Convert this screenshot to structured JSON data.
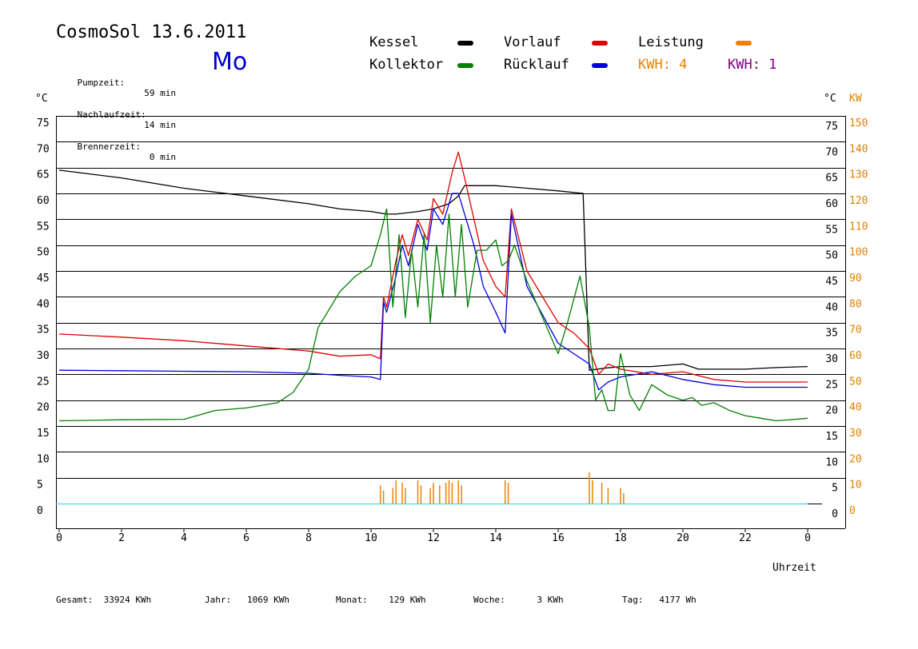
{
  "header": {
    "title": "CosmoSol 13.6.2011",
    "day": "Mo",
    "stats": [
      {
        "label": "Pumpzeit:",
        "value": "59 min"
      },
      {
        "label": "Nachlaufzeit:",
        "value": "14 min"
      },
      {
        "label": "Brennerzeit:",
        "value": "0 min"
      }
    ]
  },
  "legend": {
    "items": [
      {
        "label": "Kessel",
        "color": "#000000"
      },
      {
        "label": "Vorlauf",
        "color": "#e00000"
      },
      {
        "label": "Leistung",
        "color": "#f08000"
      },
      {
        "label": "Kollektor",
        "color": "#008000"
      },
      {
        "label": "Rücklauf",
        "color": "#0000e0"
      }
    ],
    "kwh_orange": "KWH: 4",
    "kwh_purple": "KWH: 1",
    "kwh_orange_color": "#f08000",
    "kwh_purple_color": "#800080"
  },
  "footer": {
    "gesamt": "Gesamt:  33924 KWh",
    "jahr": "Jahr:   1069 KWh",
    "monat": "Monat:    129 KWh",
    "woche": "Woche:      3 KWh",
    "tag": "Tag:   4177 Wh"
  },
  "chart_data": {
    "type": "line",
    "xlabel": "Uhrzeit",
    "ylabel_left": "°C",
    "ylabel_right_temp": "°C",
    "ylabel_right_power": "KW",
    "x_ticks": [
      "0",
      "2",
      "4",
      "6",
      "8",
      "10",
      "12",
      "14",
      "16",
      "18",
      "20",
      "22",
      "0"
    ],
    "y_ticks": [
      "75",
      "70",
      "65",
      "60",
      "55",
      "50",
      "45",
      "40",
      "35",
      "30",
      "25",
      "20",
      "15",
      "10",
      "5",
      "0"
    ],
    "y2_ticks": [
      "150",
      "140",
      "130",
      "120",
      "110",
      "100",
      "90",
      "80",
      "70",
      "60",
      "50",
      "40",
      "30",
      "20",
      "10",
      "0"
    ],
    "xlim": [
      0,
      24
    ],
    "ylim": [
      0,
      75
    ],
    "grid": true,
    "series": [
      {
        "name": "Kessel",
        "color": "#000000",
        "x": [
          0,
          2,
          4,
          6,
          8,
          9,
          10,
          10.5,
          10.8,
          11.5,
          12,
          12.5,
          12.8,
          13,
          14,
          15,
          16,
          16.8,
          17,
          17.5,
          18,
          19,
          20,
          20.5,
          21,
          22,
          23,
          24
        ],
        "y": [
          64.5,
          63,
          61,
          59.5,
          58,
          57,
          56.5,
          56,
          56,
          56.5,
          57,
          58,
          59.5,
          61.5,
          61.5,
          61,
          60.5,
          60,
          25.8,
          26.2,
          26.5,
          26.5,
          27,
          26,
          26,
          26,
          26.3,
          26.5
        ]
      },
      {
        "name": "Vorlauf",
        "color": "#e00000",
        "x": [
          0,
          2,
          4,
          6,
          8,
          9,
          10,
          10.3,
          10.4,
          10.5,
          10.8,
          11,
          11.2,
          11.5,
          11.8,
          12,
          12.3,
          12.6,
          12.8,
          13,
          13.3,
          13.6,
          14,
          14.3,
          14.5,
          15,
          16,
          16.5,
          17,
          17.3,
          17.6,
          18,
          19,
          20,
          21,
          22,
          23,
          24
        ],
        "y": [
          32.8,
          32.2,
          31.5,
          30.5,
          29.5,
          28.5,
          28.8,
          28,
          40,
          38,
          47,
          52,
          48,
          55,
          51,
          59,
          56,
          64,
          68,
          63,
          55,
          47,
          42,
          40,
          57,
          45,
          35,
          33,
          30,
          25,
          27,
          26,
          25,
          25.5,
          24,
          23.5,
          23.5,
          23.5
        ]
      },
      {
        "name": "Rücklauf",
        "color": "#0000e0",
        "x": [
          0,
          2,
          4,
          6,
          8,
          9,
          10,
          10.3,
          10.4,
          10.5,
          10.8,
          11,
          11.2,
          11.5,
          11.8,
          12,
          12.3,
          12.6,
          12.8,
          13,
          13.3,
          13.6,
          14,
          14.3,
          14.5,
          15,
          16,
          16.5,
          17,
          17.3,
          17.6,
          18,
          19,
          20,
          21,
          22,
          23,
          24
        ],
        "y": [
          25.8,
          25.7,
          25.6,
          25.5,
          25.2,
          24.8,
          24.5,
          24,
          39,
          37,
          44,
          50,
          46,
          54,
          49,
          57,
          54,
          60,
          60,
          56,
          50,
          42,
          37,
          33,
          56,
          42,
          31,
          29,
          27,
          22,
          23.5,
          24.5,
          25.5,
          24,
          23,
          22.5,
          22.5,
          22.5
        ]
      },
      {
        "name": "Kollektor",
        "color": "#008000",
        "x": [
          0,
          2,
          4,
          5,
          6,
          7,
          7.5,
          8,
          8.3,
          8.7,
          9,
          9.5,
          10,
          10.3,
          10.5,
          10.7,
          10.9,
          11.1,
          11.3,
          11.5,
          11.7,
          11.9,
          12.1,
          12.3,
          12.5,
          12.7,
          12.9,
          13.1,
          13.4,
          13.7,
          14,
          14.2,
          14.4,
          14.6,
          15,
          15.5,
          16,
          16.3,
          16.7,
          17,
          17.2,
          17.4,
          17.6,
          17.8,
          18,
          18.3,
          18.6,
          19,
          19.5,
          20,
          20.3,
          20.6,
          21,
          21.5,
          22,
          22.5,
          23,
          24
        ],
        "y": [
          16,
          16.2,
          16.3,
          18,
          18.5,
          19.5,
          21.5,
          26,
          34,
          38,
          41,
          44,
          46,
          52,
          57,
          38,
          52,
          36,
          49,
          38,
          52,
          35,
          50,
          40,
          56,
          40,
          54,
          38,
          49,
          49,
          51,
          46,
          47,
          50,
          43,
          36,
          29,
          35,
          44,
          34,
          20,
          22,
          18,
          18,
          29,
          21,
          18,
          23,
          21,
          20,
          20.5,
          19,
          19.5,
          18,
          17,
          16.5,
          16,
          16.5
        ]
      }
    ],
    "power_series": {
      "name": "Leistung",
      "color": "#f08000",
      "unit": "KW",
      "x": [
        10.3,
        10.4,
        10.7,
        10.8,
        11.0,
        11.1,
        11.5,
        11.6,
        11.9,
        12.0,
        12.2,
        12.4,
        12.5,
        12.6,
        12.8,
        12.9,
        14.3,
        14.4,
        17.0,
        17.1,
        17.4,
        17.6,
        18.0,
        18.1
      ],
      "y": [
        7,
        5,
        6,
        9,
        8,
        6,
        9,
        7,
        6,
        8,
        7,
        8,
        9,
        8,
        9,
        7,
        9,
        8,
        12,
        9,
        8,
        6,
        6,
        4
      ]
    }
  }
}
